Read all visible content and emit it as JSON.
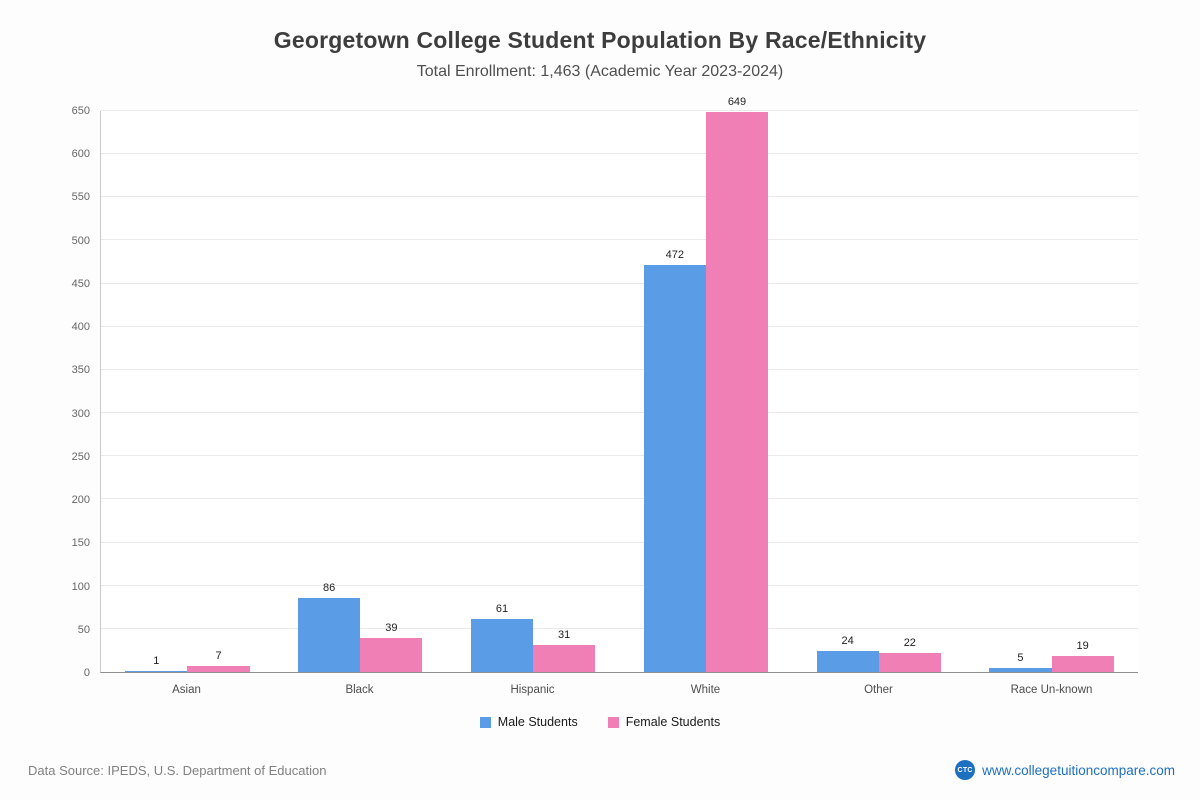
{
  "title": "Georgetown College Student Population By Race/Ethnicity",
  "subtitle": "Total Enrollment: 1,463 (Academic Year 2023-2024)",
  "chart_data": {
    "type": "bar",
    "categories": [
      "Asian",
      "Black",
      "Hispanic",
      "White",
      "Other",
      "Race Un-known"
    ],
    "series": [
      {
        "name": "Male Students",
        "color": "#5b9ce6",
        "values": [
          1,
          86,
          61,
          472,
          24,
          5
        ]
      },
      {
        "name": "Female Students",
        "color": "#ef7fb5",
        "values": [
          7,
          39,
          31,
          649,
          22,
          19
        ]
      }
    ],
    "ylim": [
      0,
      650
    ],
    "y_tick_step": 50,
    "grid": true,
    "legend_position": "bottom"
  },
  "footer": {
    "source": "Data Source: IPEDS, U.S. Department of Education",
    "logo": "CTC",
    "website": "www.collegetuitioncompare.com"
  }
}
